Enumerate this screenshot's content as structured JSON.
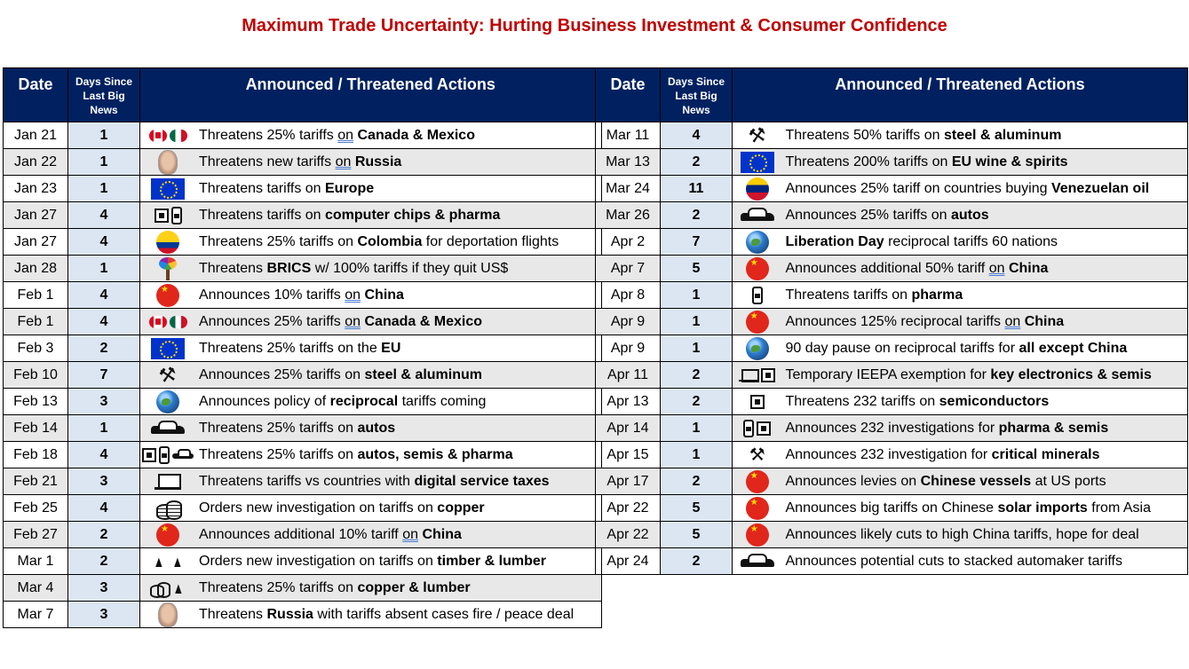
{
  "title": "Maximum Trade Uncertainty: Hurting Business Investment & Consumer Confidence",
  "columns": {
    "date": "Date",
    "days_line1": "Days Since",
    "days_line2": "Last Big",
    "days_line3": "News",
    "actions": "Announced / Threatened Actions"
  },
  "left_rows": [
    {
      "date": "Jan 21",
      "days": "1",
      "icons": [
        "canada-flag-icon",
        "mexico-flag-icon"
      ],
      "pre": "Threatens 25% tariffs ",
      "link": "on",
      "mid": " ",
      "bold": "Canada & Mexico",
      "post": ""
    },
    {
      "date": "Jan 22",
      "days": "1",
      "icons": [
        "putin-portrait-icon"
      ],
      "pre": "Threatens new tariffs ",
      "link": "on",
      "mid": " ",
      "bold": "Russia",
      "post": ""
    },
    {
      "date": "Jan 23",
      "days": "1",
      "icons": [
        "eu-flag-icon"
      ],
      "pre": "Threatens tariffs on ",
      "link": "",
      "mid": "",
      "bold": "Europe",
      "post": ""
    },
    {
      "date": "Jan 27",
      "days": "4",
      "icons": [
        "chip-icon",
        "pill-bottle-icon"
      ],
      "pre": "Threatens tariffs on ",
      "link": "",
      "mid": "",
      "bold": "computer chips & pharma",
      "post": ""
    },
    {
      "date": "Jan 27",
      "days": "4",
      "icons": [
        "colombia-flag-icon"
      ],
      "pre": "Threatens 25% tariffs on ",
      "link": "",
      "mid": "",
      "bold": "Colombia",
      "post": " for deportation flights"
    },
    {
      "date": "Jan 28",
      "days": "1",
      "icons": [
        "brics-tree-icon"
      ],
      "pre": "Threatens ",
      "link": "",
      "mid": "",
      "bold": "BRICS",
      "post": " w/ 100% tariffs if they quit US$"
    },
    {
      "date": "Feb 1",
      "days": "4",
      "icons": [
        "china-flag-icon"
      ],
      "pre": "Announces 10% tariffs ",
      "link": "on",
      "mid": " ",
      "bold": "China",
      "post": ""
    },
    {
      "date": "Feb 1",
      "days": "4",
      "icons": [
        "canada-flag-icon",
        "mexico-flag-icon"
      ],
      "pre": "Announces 25% tariffs ",
      "link": "on",
      "mid": " ",
      "bold": "Canada & Mexico",
      "post": ""
    },
    {
      "date": "Feb 3",
      "days": "2",
      "icons": [
        "eu-flag-icon"
      ],
      "pre": "Threatens 25% tariffs on the ",
      "link": "",
      "mid": "",
      "bold": "EU",
      "post": ""
    },
    {
      "date": "Feb 10",
      "days": "7",
      "icons": [
        "wrench-icon"
      ],
      "pre": "Announces 25% tariffs on ",
      "link": "",
      "mid": "",
      "bold": "steel & aluminum",
      "post": ""
    },
    {
      "date": "Feb 13",
      "days": "3",
      "icons": [
        "globe-icon"
      ],
      "pre": "Announces policy of ",
      "link": "",
      "mid": "",
      "bold": "reciprocal",
      "post": " tariffs coming"
    },
    {
      "date": "Feb 14",
      "days": "1",
      "icons": [
        "car-icon"
      ],
      "pre": "Threatens 25% tariffs on ",
      "link": "",
      "mid": "",
      "bold": "autos",
      "post": ""
    },
    {
      "date": "Feb 18",
      "days": "4",
      "icons": [
        "chip-icon",
        "pill-bottle-icon",
        "small-car-icon"
      ],
      "pre": "Threatens 25% tariffs on ",
      "link": "",
      "mid": "",
      "bold": "autos, semis & pharma",
      "post": ""
    },
    {
      "date": "Feb 21",
      "days": "3",
      "icons": [
        "laptop-icon"
      ],
      "pre": "Threatens tariffs vs countries with ",
      "link": "",
      "mid": "",
      "bold": "digital service taxes",
      "post": ""
    },
    {
      "date": "Feb 25",
      "days": "4",
      "icons": [
        "coins-icon"
      ],
      "pre": "Orders new investigation on tariffs on ",
      "link": "",
      "mid": "",
      "bold": "copper",
      "post": ""
    },
    {
      "date": "Feb 27",
      "days": "2",
      "icons": [
        "china-flag-icon"
      ],
      "pre": "Announces additional 10% tariff ",
      "link": "on",
      "mid": " ",
      "bold": "China",
      "post": ""
    },
    {
      "date": "Mar 1",
      "days": "2",
      "icons": [
        "tree-icon",
        "tree-icon"
      ],
      "pre": "Orders new investigation on tariffs on ",
      "link": "",
      "mid": "",
      "bold": "timber & lumber",
      "post": ""
    },
    {
      "date": "Mar 4",
      "days": "3",
      "icons": [
        "small-coins-icon",
        "tree-icon"
      ],
      "pre": "Threatens 25% tariffs on ",
      "link": "",
      "mid": "",
      "bold": "copper & lumber",
      "post": ""
    },
    {
      "date": "Mar 7",
      "days": "3",
      "icons": [
        "putin-portrait-icon"
      ],
      "pre": "Threatens ",
      "link": "",
      "mid": "",
      "bold": "Russia",
      "post": " with tariffs absent cases fire / peace deal"
    }
  ],
  "right_rows": [
    {
      "date": "Mar 11",
      "days": "4",
      "icons": [
        "wrench-icon"
      ],
      "pre": "Threatens 50% tariffs on ",
      "link": "",
      "mid": "",
      "bold": "steel & aluminum",
      "post": ""
    },
    {
      "date": "Mar 13",
      "days": "2",
      "icons": [
        "eu-flag-icon"
      ],
      "pre": "Threatens 200% tariffs on ",
      "link": "",
      "mid": "",
      "bold": "EU wine & spirits",
      "post": ""
    },
    {
      "date": "Mar 24",
      "days": "11",
      "icons": [
        "venezuela-flag-icon"
      ],
      "pre": "Announces 25% tariff on countries buying ",
      "link": "",
      "mid": "",
      "bold": "Venezuelan oil",
      "post": ""
    },
    {
      "date": "Mar 26",
      "days": "2",
      "icons": [
        "car-icon"
      ],
      "pre": "Announces 25% tariffs on ",
      "link": "",
      "mid": "",
      "bold": "autos",
      "post": ""
    },
    {
      "date": "Apr 2",
      "days": "7",
      "icons": [
        "globe-icon"
      ],
      "pre": "",
      "link": "",
      "mid": "",
      "bold": "Liberation Day",
      "post": " reciprocal tariffs 60 nations"
    },
    {
      "date": "Apr 7",
      "days": "5",
      "icons": [
        "china-flag-icon"
      ],
      "pre": "Announces additional 50% tariff ",
      "link": "on",
      "mid": " ",
      "bold": "China",
      "post": ""
    },
    {
      "date": "Apr 8",
      "days": "1",
      "icons": [
        "pill-bottle-icon"
      ],
      "pre": "Threatens tariffs on ",
      "link": "",
      "mid": "",
      "bold": "pharma",
      "post": ""
    },
    {
      "date": "Apr 9",
      "days": "1",
      "icons": [
        "china-flag-icon"
      ],
      "pre": "Announces 125% reciprocal tariffs ",
      "link": "on",
      "mid": " ",
      "bold": "China",
      "post": ""
    },
    {
      "date": "Apr 9",
      "days": "1",
      "icons": [
        "globe-icon"
      ],
      "pre": "90 day pause on reciprocal tariffs for ",
      "link": "",
      "mid": "",
      "bold": "all except China",
      "post": ""
    },
    {
      "date": "Apr 11",
      "days": "2",
      "icons": [
        "small-laptop-icon",
        "chip-icon"
      ],
      "pre": "Temporary IEEPA exemption for ",
      "link": "",
      "mid": "",
      "bold": "key electronics & semis",
      "post": ""
    },
    {
      "date": "Apr 13",
      "days": "2",
      "icons": [
        "chip-icon"
      ],
      "pre": "Threatens 232 tariffs on ",
      "link": "",
      "mid": "",
      "bold": "semiconductors",
      "post": ""
    },
    {
      "date": "Apr 14",
      "days": "1",
      "icons": [
        "pill-bottle-icon",
        "chip-icon"
      ],
      "pre": "Announces 232 investigations for ",
      "link": "",
      "mid": "",
      "bold": "pharma & semis",
      "post": ""
    },
    {
      "date": "Apr 15",
      "days": "1",
      "icons": [
        "hammer-pick-icon"
      ],
      "pre": "Announces 232 investigation for ",
      "link": "",
      "mid": "",
      "bold": "critical minerals",
      "post": ""
    },
    {
      "date": "Apr 17",
      "days": "2",
      "icons": [
        "china-flag-icon"
      ],
      "pre": "Announces levies on ",
      "link": "",
      "mid": "",
      "bold": "Chinese vessels",
      "post": " at US ports"
    },
    {
      "date": "Apr 22",
      "days": "5",
      "icons": [
        "china-flag-icon"
      ],
      "pre": "Announces big tariffs on Chinese ",
      "link": "",
      "mid": "",
      "bold": "solar imports",
      "post": " from Asia"
    },
    {
      "date": "Apr 22",
      "days": "5",
      "icons": [
        "china-flag-icon"
      ],
      "pre": "Announces likely cuts to high China tariffs, hope for deal",
      "link": "",
      "mid": "",
      "bold": "",
      "post": ""
    },
    {
      "date": "Apr 24",
      "days": "2",
      "icons": [
        "car-icon"
      ],
      "pre": "Announces potential cuts to stacked automaker tariffs",
      "link": "",
      "mid": "",
      "bold": "",
      "post": ""
    }
  ]
}
